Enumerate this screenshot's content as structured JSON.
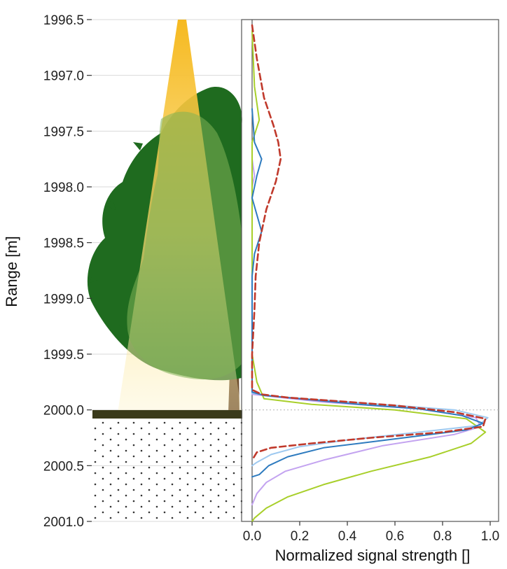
{
  "chart_data": {
    "type": "line",
    "orientation": "horizontal-signal-vs-vertical-range",
    "xlabel": "Normalized signal strength []",
    "ylabel": "Range [m]",
    "xlim": [
      0.0,
      1.0
    ],
    "ylim": [
      1996.5,
      2001.0
    ],
    "y_inverted": true,
    "x_ticks": [
      "0.0",
      "0.2",
      "0.4",
      "0.6",
      "0.8",
      "1.0"
    ],
    "y_ticks": [
      "1996.5",
      "1997.0",
      "1997.5",
      "1998.0",
      "1998.5",
      "1999.0",
      "1999.5",
      "2000.0",
      "2000.5",
      "2001.0"
    ],
    "reference_line_y": 2000.0,
    "illustration": {
      "elements": [
        "light-cone",
        "tree",
        "ground-line",
        "soil-dots"
      ],
      "colors": {
        "cone": "#f7c43a",
        "tree_dark": "#1f6b1f",
        "tree_light": "#6da84a",
        "ground": "#3a3a1a",
        "soil_dots": "#333333"
      }
    },
    "series": [
      {
        "color": "#c0392b",
        "style": "dashed",
        "points": [
          [
            0.0,
            1996.55
          ],
          [
            0.02,
            1996.85
          ],
          [
            0.05,
            1997.2
          ],
          [
            0.09,
            1997.45
          ],
          [
            0.11,
            1997.6
          ],
          [
            0.12,
            1997.75
          ],
          [
            0.1,
            1997.95
          ],
          [
            0.06,
            1998.2
          ],
          [
            0.03,
            1998.5
          ],
          [
            0.015,
            1998.8
          ],
          [
            0.01,
            1999.1
          ],
          [
            0.0,
            1999.5
          ],
          [
            0.0,
            1999.82
          ],
          [
            0.04,
            1999.86
          ],
          [
            0.15,
            1999.89
          ],
          [
            0.35,
            1999.92
          ],
          [
            0.6,
            1999.96
          ],
          [
            0.85,
            2000.02
          ],
          [
            0.98,
            2000.08
          ],
          [
            0.97,
            2000.15
          ],
          [
            0.8,
            2000.2
          ],
          [
            0.5,
            2000.25
          ],
          [
            0.25,
            2000.3
          ],
          [
            0.08,
            2000.34
          ],
          [
            0.02,
            2000.38
          ],
          [
            0.0,
            2000.45
          ]
        ]
      },
      {
        "color": "#2e7bbf",
        "style": "solid",
        "points": [
          [
            0.0,
            1997.3
          ],
          [
            0.01,
            1997.6
          ],
          [
            0.04,
            1997.75
          ],
          [
            0.02,
            1997.9
          ],
          [
            0.0,
            1998.1
          ],
          [
            0.02,
            1998.25
          ],
          [
            0.04,
            1998.4
          ],
          [
            0.01,
            1998.6
          ],
          [
            0.0,
            1998.8
          ],
          [
            0.0,
            1999.5
          ],
          [
            0.0,
            1999.84
          ],
          [
            0.05,
            1999.87
          ],
          [
            0.2,
            1999.9
          ],
          [
            0.45,
            1999.95
          ],
          [
            0.7,
            1999.99
          ],
          [
            0.88,
            2000.05
          ],
          [
            0.97,
            2000.12
          ],
          [
            0.9,
            2000.18
          ],
          [
            0.6,
            2000.26
          ],
          [
            0.3,
            2000.34
          ],
          [
            0.15,
            2000.42
          ],
          [
            0.07,
            2000.5
          ],
          [
            0.03,
            2000.58
          ],
          [
            0.0,
            2000.6
          ]
        ]
      },
      {
        "color": "#9ec9f0",
        "style": "solid",
        "points": [
          [
            0.0,
            1999.85
          ],
          [
            0.1,
            1999.88
          ],
          [
            0.35,
            1999.92
          ],
          [
            0.6,
            1999.96
          ],
          [
            0.85,
            2000.0
          ],
          [
            0.99,
            2000.07
          ],
          [
            0.95,
            2000.14
          ],
          [
            0.7,
            2000.2
          ],
          [
            0.4,
            2000.27
          ],
          [
            0.2,
            2000.33
          ],
          [
            0.08,
            2000.4
          ],
          [
            0.02,
            2000.47
          ],
          [
            0.0,
            2000.5
          ]
        ]
      },
      {
        "color": "#c3a3f0",
        "style": "solid",
        "points": [
          [
            0.0,
            1997.75
          ],
          [
            0.01,
            1997.9
          ],
          [
            0.0,
            1998.0
          ],
          [
            0.0,
            1999.5
          ],
          [
            0.0,
            1999.86
          ],
          [
            0.3,
            1999.93
          ],
          [
            0.7,
            1999.99
          ],
          [
            0.94,
            2000.07
          ],
          [
            0.96,
            2000.15
          ],
          [
            0.85,
            2000.22
          ],
          [
            0.55,
            2000.32
          ],
          [
            0.3,
            2000.45
          ],
          [
            0.14,
            2000.55
          ],
          [
            0.06,
            2000.65
          ],
          [
            0.02,
            2000.75
          ],
          [
            0.0,
            2000.85
          ]
        ]
      },
      {
        "color": "#a8cf2a",
        "style": "solid",
        "points": [
          [
            0.0,
            1996.6
          ],
          [
            0.01,
            1997.1
          ],
          [
            0.03,
            1997.4
          ],
          [
            0.0,
            1997.6
          ],
          [
            0.0,
            1999.5
          ],
          [
            0.02,
            1999.75
          ],
          [
            0.05,
            1999.9
          ],
          [
            0.25,
            1999.95
          ],
          [
            0.6,
            2000.0
          ],
          [
            0.9,
            2000.08
          ],
          [
            0.98,
            2000.2
          ],
          [
            0.92,
            2000.3
          ],
          [
            0.75,
            2000.42
          ],
          [
            0.5,
            2000.55
          ],
          [
            0.3,
            2000.67
          ],
          [
            0.15,
            2000.78
          ],
          [
            0.06,
            2000.88
          ],
          [
            0.01,
            2000.97
          ],
          [
            0.0,
            2001.0
          ]
        ]
      }
    ]
  }
}
